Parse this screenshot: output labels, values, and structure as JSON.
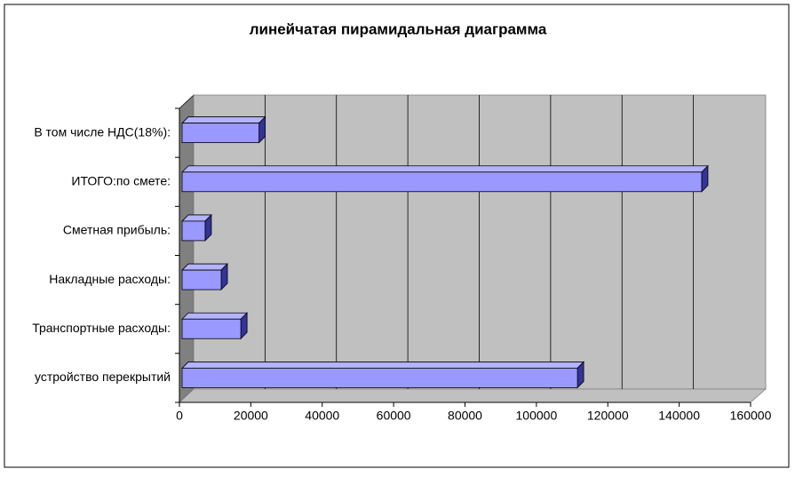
{
  "chart_data": {
    "type": "bar3d-horizontal",
    "title": "линейчатая пирамидальная диаграмма",
    "categories": [
      "устройство перекрытий",
      "Транспортные расходы:",
      "Накладные расходы:",
      "Сметная прибыль:",
      "ИТОГО:по смете:",
      "В том числе НДС(18%):"
    ],
    "values": [
      111500,
      17200,
      11700,
      7200,
      146300,
      22300
    ],
    "color": "#9999ff",
    "xlim": [
      0,
      160000
    ],
    "xticks": [
      0,
      20000,
      40000,
      60000,
      80000,
      100000,
      120000,
      140000,
      160000
    ],
    "grid": true
  }
}
